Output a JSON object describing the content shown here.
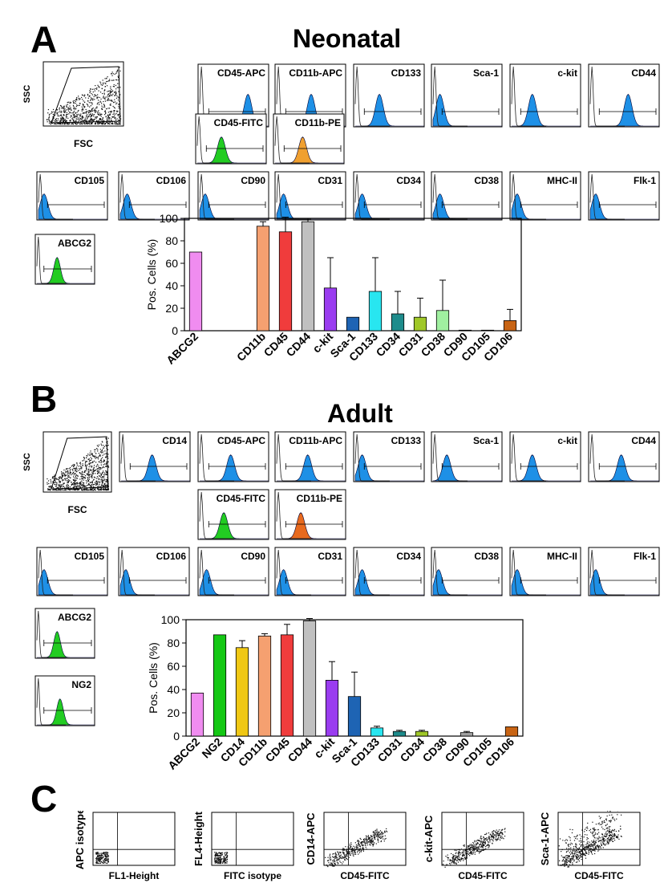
{
  "panels": {
    "A": {
      "letter": "A",
      "title": "Neonatal",
      "scatter": {
        "ylabel": "SSC",
        "xlabel": "FSC"
      },
      "histograms": [
        {
          "label": "CD45-APC",
          "color": "#1e90e6",
          "pos": 0.7
        },
        {
          "label": "CD11b-APC",
          "color": "#1e90e6",
          "pos": 0.5
        },
        {
          "label": "CD133",
          "color": "#1e90e6",
          "pos": 0.35
        },
        {
          "label": "Sca-1",
          "color": "#1e90e6",
          "pos": 0.1
        },
        {
          "label": "c-kit",
          "color": "#1e90e6",
          "pos": 0.3
        },
        {
          "label": "CD44",
          "color": "#1e90e6",
          "pos": 0.55
        },
        {
          "label": "CD45-FITC",
          "color": "#22cc22",
          "pos": 0.35
        },
        {
          "label": "CD11b-PE",
          "color": "#f0a030",
          "pos": 0.4
        },
        {
          "label": "CD105",
          "color": "#1e90e6",
          "pos": 0.08
        },
        {
          "label": "CD106",
          "color": "#1e90e6",
          "pos": 0.1
        },
        {
          "label": "CD90",
          "color": "#1e90e6",
          "pos": 0.08
        },
        {
          "label": "CD31",
          "color": "#1e90e6",
          "pos": 0.1
        },
        {
          "label": "CD34",
          "color": "#1e90e6",
          "pos": 0.1
        },
        {
          "label": "CD38",
          "color": "#1e90e6",
          "pos": 0.1
        },
        {
          "label": "MHC-II",
          "color": "#1e90e6",
          "pos": 0.08
        },
        {
          "label": "Flk-1",
          "color": "#1e90e6",
          "pos": 0.08
        },
        {
          "label": "ABCG2",
          "color": "#22cc22",
          "pos": 0.35
        }
      ]
    },
    "B": {
      "letter": "B",
      "title": "Adult",
      "scatter": {
        "ylabel": "SSC",
        "xlabel": "FSC"
      },
      "histograms": [
        {
          "label": "CD14",
          "color": "#1e90e6",
          "pos": 0.45
        },
        {
          "label": "CD45-APC",
          "color": "#1e90e6",
          "pos": 0.45
        },
        {
          "label": "CD11b-APC",
          "color": "#1e90e6",
          "pos": 0.45
        },
        {
          "label": "CD133",
          "color": "#1e90e6",
          "pos": 0.1
        },
        {
          "label": "Sca-1",
          "color": "#1e90e6",
          "pos": 0.2
        },
        {
          "label": "c-kit",
          "color": "#1e90e6",
          "pos": 0.3
        },
        {
          "label": "CD44",
          "color": "#1e90e6",
          "pos": 0.45
        },
        {
          "label": "CD45-FITC",
          "color": "#22cc22",
          "pos": 0.35
        },
        {
          "label": "CD11b-PE",
          "color": "#e86a1e",
          "pos": 0.35
        },
        {
          "label": "CD105",
          "color": "#1e90e6",
          "pos": 0.08
        },
        {
          "label": "CD106",
          "color": "#1e90e6",
          "pos": 0.08
        },
        {
          "label": "CD90",
          "color": "#1e90e6",
          "pos": 0.1
        },
        {
          "label": "CD31",
          "color": "#1e90e6",
          "pos": 0.1
        },
        {
          "label": "CD34",
          "color": "#1e90e6",
          "pos": 0.1
        },
        {
          "label": "CD38",
          "color": "#1e90e6",
          "pos": 0.08
        },
        {
          "label": "MHC-II",
          "color": "#1e90e6",
          "pos": 0.08
        },
        {
          "label": "Flk-1",
          "color": "#1e90e6",
          "pos": 0.08
        },
        {
          "label": "ABCG2",
          "color": "#22cc22",
          "pos": 0.35
        },
        {
          "label": "NG2",
          "color": "#22cc22",
          "pos": 0.4
        }
      ]
    },
    "C": {
      "letter": "C",
      "dotplots": [
        {
          "ylabel": "APC isotype",
          "xlabel": "FL1-Height"
        },
        {
          "ylabel": "FL4-Height",
          "xlabel": "FITC isotype"
        },
        {
          "ylabel": "CD14-APC",
          "xlabel": "CD45-FITC"
        },
        {
          "ylabel": "c-kit-APC",
          "xlabel": "CD45-FITC"
        },
        {
          "ylabel": "Sca-1-APC",
          "xlabel": "CD45-FITC"
        }
      ]
    }
  },
  "chart_data": [
    {
      "type": "bar",
      "panel": "A",
      "ylabel": "Pos. Cells (%)",
      "ylim": [
        0,
        100
      ],
      "yticks": [
        0,
        20,
        40,
        60,
        80,
        100
      ],
      "categories": [
        "ABCG2",
        "CD11b",
        "CD45",
        "CD44",
        "c-kit",
        "Sca-1",
        "CD133",
        "CD34",
        "CD31",
        "CD38",
        "CD90",
        "CD105",
        "CD106"
      ],
      "x_slots": [
        0,
        3,
        4,
        5,
        6,
        7,
        8,
        9,
        10,
        11,
        12,
        13,
        14
      ],
      "values": [
        70,
        93,
        88,
        97,
        38,
        12,
        35,
        15,
        12,
        18,
        0.5,
        0.5,
        9
      ],
      "errors": [
        0,
        4,
        13,
        3,
        27,
        0,
        30,
        20,
        17,
        27,
        0,
        0,
        10
      ],
      "colors": [
        "#f08cf0",
        "#f5a070",
        "#f03c3c",
        "#c0c0c0",
        "#9a3cf0",
        "#1e64b4",
        "#28e6f0",
        "#1e8c8c",
        "#a0c828",
        "#a0f0a0",
        "#787878",
        "#1e64b4",
        "#c86414"
      ]
    },
    {
      "type": "bar",
      "panel": "B",
      "ylabel": "Pos. Cells (%)",
      "ylim": [
        0,
        100
      ],
      "yticks": [
        0,
        20,
        40,
        60,
        80,
        100
      ],
      "categories": [
        "ABCG2",
        "NG2",
        "CD14",
        "CD11b",
        "CD45",
        "CD44",
        "c-kit",
        "Sca-1",
        "CD133",
        "CD31",
        "CD34",
        "CD38",
        "CD90",
        "CD105",
        "CD106"
      ],
      "x_slots": [
        0,
        1,
        2,
        3,
        4,
        5,
        6,
        7,
        8,
        9,
        10,
        11,
        12,
        13,
        14
      ],
      "values": [
        37,
        87,
        76,
        86,
        87,
        99,
        48,
        34,
        7,
        4,
        4,
        0,
        3,
        0,
        8
      ],
      "errors": [
        0,
        0,
        6,
        2,
        9,
        2,
        16,
        21,
        1.5,
        1,
        1,
        0,
        1,
        0,
        0
      ],
      "colors": [
        "#f08cf0",
        "#14c814",
        "#f0c814",
        "#f5a070",
        "#f03c3c",
        "#c0c0c0",
        "#9a3cf0",
        "#1e64b4",
        "#28e6f0",
        "#1e8c8c",
        "#a0c828",
        "#a0f0a0",
        "#a0a0a0",
        "#1e64b4",
        "#c86414"
      ]
    }
  ]
}
